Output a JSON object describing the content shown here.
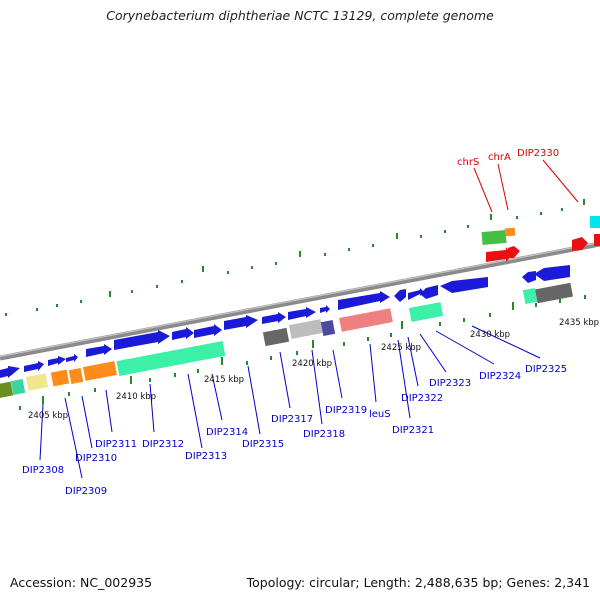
{
  "title": "Corynebacterium diphtheriae NCTC 13129, complete genome",
  "accession": "Accession: NC_002935",
  "summary": "Topology: circular; Length: 2,488,635 bp; Genes: 2,341",
  "colors": {
    "gene_blue": "#1a1ad8",
    "rna_red": "#e81010",
    "backbone": "#8a8a8a",
    "tick_green": "#2a8a2a",
    "label_blue": "#0000cc",
    "label_red": "#dd0000"
  },
  "kbp_labels": [
    "2405 kbp",
    "2410 kbp",
    "2415 kbp",
    "2420 kbp",
    "2425 kbp",
    "2430 kbp",
    "2435 kbp"
  ],
  "gene_labels": [
    {
      "text": "DIP2308",
      "color": "blue"
    },
    {
      "text": "DIP2309",
      "color": "blue"
    },
    {
      "text": "DIP2310",
      "color": "blue"
    },
    {
      "text": "DIP2311",
      "color": "blue"
    },
    {
      "text": "DIP2312",
      "color": "blue"
    },
    {
      "text": "DIP2313",
      "color": "blue"
    },
    {
      "text": "DIP2314",
      "color": "blue"
    },
    {
      "text": "DIP2315",
      "color": "blue"
    },
    {
      "text": "DIP2317",
      "color": "blue"
    },
    {
      "text": "DIP2318",
      "color": "blue"
    },
    {
      "text": "DIP2319",
      "color": "blue"
    },
    {
      "text": "leuS",
      "color": "blue"
    },
    {
      "text": "DIP2321",
      "color": "blue"
    },
    {
      "text": "DIP2322",
      "color": "blue"
    },
    {
      "text": "DIP2323",
      "color": "blue"
    },
    {
      "text": "DIP2324",
      "color": "blue"
    },
    {
      "text": "DIP2325",
      "color": "blue"
    },
    {
      "text": "chrS",
      "color": "red"
    },
    {
      "text": "chrA",
      "color": "red"
    },
    {
      "text": "DIP2330",
      "color": "red"
    }
  ]
}
